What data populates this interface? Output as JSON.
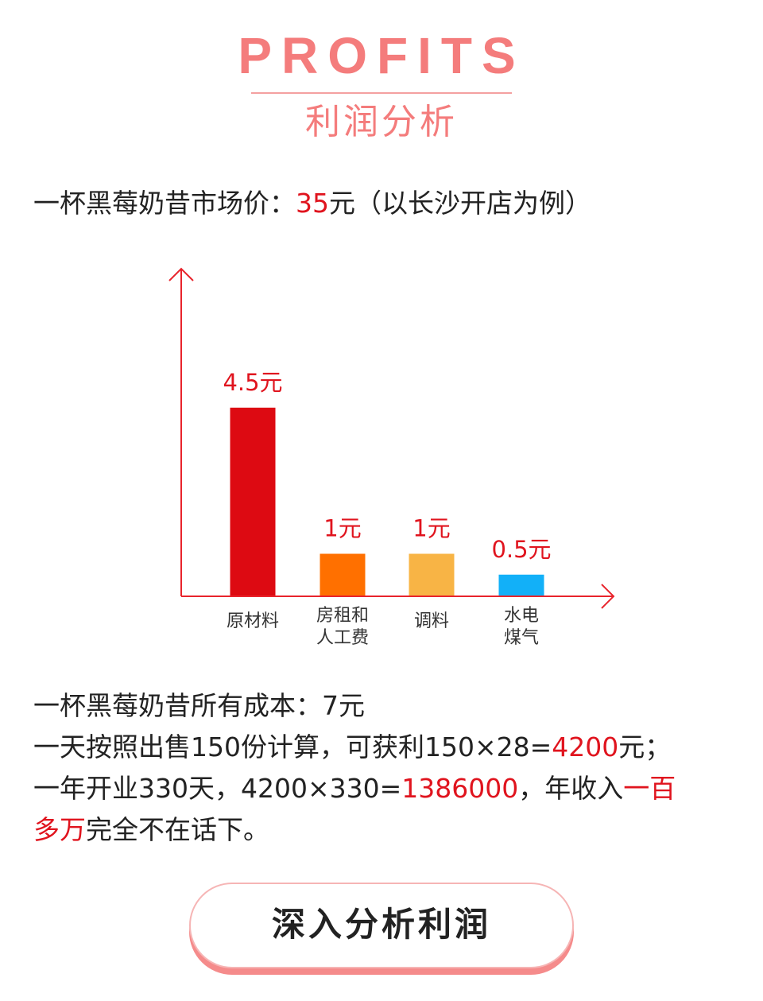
{
  "header": {
    "title_en": "PROFITS",
    "title_cn": "利润分析"
  },
  "intro": {
    "prefix": "一杯黑莓奶昔市场价：",
    "price": "35",
    "suffix": "元（以长沙开店为例）"
  },
  "chart_data": {
    "type": "bar",
    "categories": [
      "原材料",
      "房租和人工费",
      "调料",
      "水电煤气"
    ],
    "category_lines": [
      [
        "原材料"
      ],
      [
        "房租和",
        "人工费"
      ],
      [
        "调料"
      ],
      [
        "水电",
        "煤气"
      ]
    ],
    "values": [
      4.5,
      1,
      1,
      0.5
    ],
    "data_labels": [
      "4.5元",
      "1元",
      "1元",
      "0.5元"
    ],
    "colors": [
      "#dd0a12",
      "#ff7000",
      "#f8b445",
      "#12b0f8"
    ],
    "axis_color": "#e8242c",
    "label_color": "#e0141e",
    "title": "",
    "xlabel": "",
    "ylabel": "",
    "ylim": [
      0,
      7
    ]
  },
  "summary": {
    "cost_line": "一杯黑莓奶昔所有成本：7元",
    "day_prefix": "一天按照出售150份计算，可获利150×28=",
    "day_profit": "4200",
    "day_suffix": "元；",
    "year_prefix": "一年开业330天，4200×330=",
    "year_total": "1386000",
    "year_mid": "，年收入",
    "year_highlight_1": "一百",
    "year_highlight_2": "多万",
    "year_end": "完全不在话下。"
  },
  "cta": {
    "label": "深入分析利润"
  }
}
